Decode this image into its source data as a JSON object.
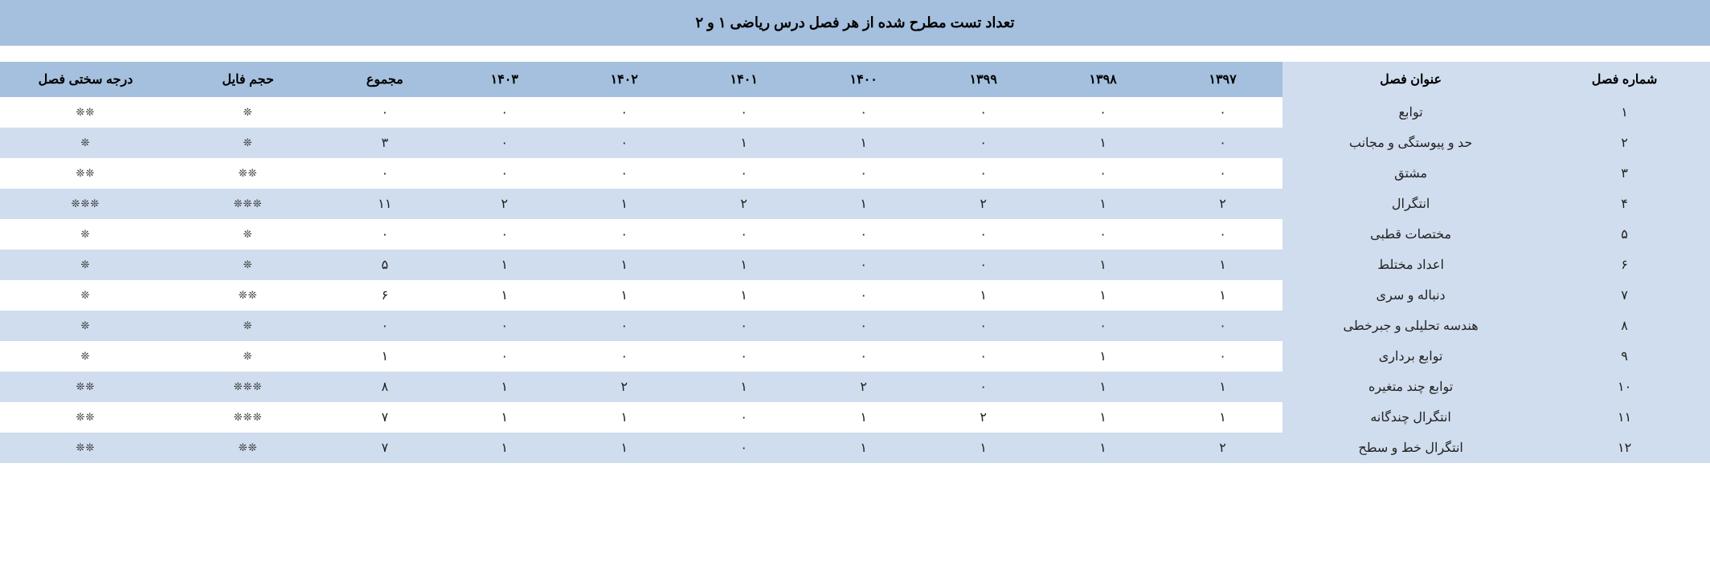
{
  "title": "تعداد تست مطرح شده از هر فصل درس ریاضی ۱ و ۲",
  "columns": {
    "difficulty": "درجه سختی فصل",
    "filesize": "حجم فایل",
    "sum": "مجموع",
    "years": [
      "۱۴۰۳",
      "۱۴۰۲",
      "۱۴۰۱",
      "۱۴۰۰",
      "۱۳۹۹",
      "۱۳۹۸",
      "۱۳۹۷"
    ],
    "chapter_title": "عنوان فصل",
    "chapter_num": "شماره فصل"
  },
  "star_glyph": "❊",
  "rows": [
    {
      "num": "۱",
      "title": "توابع",
      "y1403": "۰",
      "y1402": "۰",
      "y1401": "۰",
      "y1400": "۰",
      "y1399": "۰",
      "y1398": "۰",
      "y1397": "۰",
      "sum": "۰",
      "filesize_stars": 1,
      "difficulty_stars": 2
    },
    {
      "num": "۲",
      "title": "حد و پیوستگی و مجانب",
      "y1403": "۰",
      "y1402": "۰",
      "y1401": "۱",
      "y1400": "۱",
      "y1399": "۰",
      "y1398": "۱",
      "y1397": "۰",
      "sum": "۳",
      "filesize_stars": 1,
      "difficulty_stars": 1
    },
    {
      "num": "۳",
      "title": "مشتق",
      "y1403": "۰",
      "y1402": "۰",
      "y1401": "۰",
      "y1400": "۰",
      "y1399": "۰",
      "y1398": "۰",
      "y1397": "۰",
      "sum": "۰",
      "filesize_stars": 2,
      "difficulty_stars": 2
    },
    {
      "num": "۴",
      "title": "انتگرال",
      "y1403": "۲",
      "y1402": "۱",
      "y1401": "۲",
      "y1400": "۱",
      "y1399": "۲",
      "y1398": "۱",
      "y1397": "۲",
      "sum": "۱۱",
      "filesize_stars": 3,
      "difficulty_stars": 3
    },
    {
      "num": "۵",
      "title": "مختصات قطبی",
      "y1403": "۰",
      "y1402": "۰",
      "y1401": "۰",
      "y1400": "۰",
      "y1399": "۰",
      "y1398": "۰",
      "y1397": "۰",
      "sum": "۰",
      "filesize_stars": 1,
      "difficulty_stars": 1
    },
    {
      "num": "۶",
      "title": "اعداد مختلط",
      "y1403": "۱",
      "y1402": "۱",
      "y1401": "۱",
      "y1400": "۰",
      "y1399": "۰",
      "y1398": "۱",
      "y1397": "۱",
      "sum": "۵",
      "filesize_stars": 1,
      "difficulty_stars": 1
    },
    {
      "num": "۷",
      "title": "دنباله و سری",
      "y1403": "۱",
      "y1402": "۱",
      "y1401": "۱",
      "y1400": "۰",
      "y1399": "۱",
      "y1398": "۱",
      "y1397": "۱",
      "sum": "۶",
      "filesize_stars": 2,
      "difficulty_stars": 1
    },
    {
      "num": "۸",
      "title": "هندسه تحلیلی و جبرخطی",
      "y1403": "۰",
      "y1402": "۰",
      "y1401": "۰",
      "y1400": "۰",
      "y1399": "۰",
      "y1398": "۰",
      "y1397": "۰",
      "sum": "۰",
      "filesize_stars": 1,
      "difficulty_stars": 1
    },
    {
      "num": "۹",
      "title": "توابع برداری",
      "y1403": "۰",
      "y1402": "۰",
      "y1401": "۰",
      "y1400": "۰",
      "y1399": "۰",
      "y1398": "۱",
      "y1397": "۰",
      "sum": "۱",
      "filesize_stars": 1,
      "difficulty_stars": 1
    },
    {
      "num": "۱۰",
      "title": "توابع چند متغیره",
      "y1403": "۱",
      "y1402": "۲",
      "y1401": "۱",
      "y1400": "۲",
      "y1399": "۰",
      "y1398": "۱",
      "y1397": "۱",
      "sum": "۸",
      "filesize_stars": 3,
      "difficulty_stars": 2
    },
    {
      "num": "۱۱",
      "title": "انتگرال چندگانه",
      "y1403": "۱",
      "y1402": "۱",
      "y1401": "۰",
      "y1400": "۱",
      "y1399": "۲",
      "y1398": "۱",
      "y1397": "۱",
      "sum": "۷",
      "filesize_stars": 3,
      "difficulty_stars": 2
    },
    {
      "num": "۱۲",
      "title": "انتگرال خط و سطح",
      "y1403": "۱",
      "y1402": "۱",
      "y1401": "۰",
      "y1400": "۱",
      "y1399": "۱",
      "y1398": "۱",
      "y1397": "۲",
      "sum": "۷",
      "filesize_stars": 2,
      "difficulty_stars": 2
    }
  ]
}
